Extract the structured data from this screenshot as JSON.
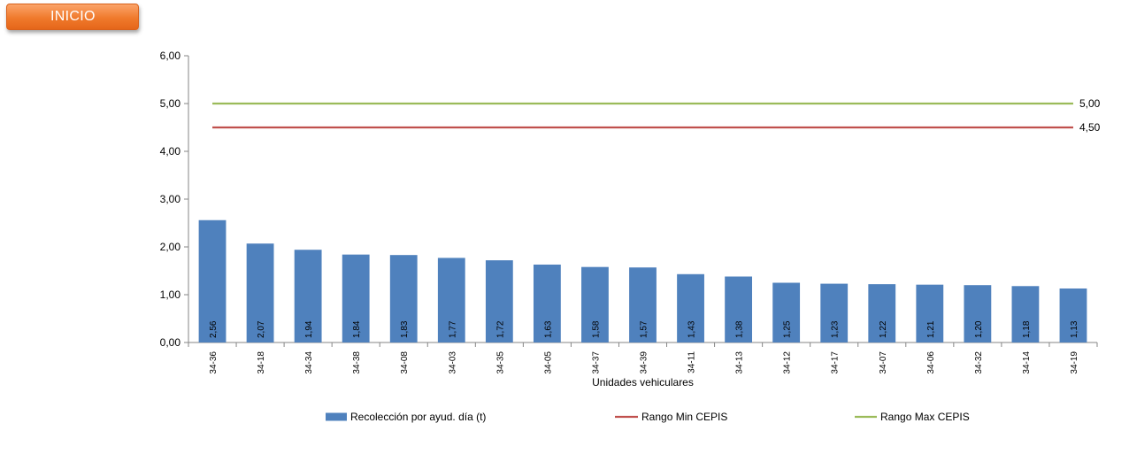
{
  "button": {
    "label": "INICIO"
  },
  "colors": {
    "bar": "#4f81bd",
    "min": "#c0504d",
    "max": "#9bbb59",
    "button": "#f07a2c"
  },
  "chart_data": {
    "type": "bar",
    "title": "",
    "xlabel": "Unidades vehiculares",
    "ylabel": "",
    "ylim": [
      0,
      6
    ],
    "yticks": [
      0,
      1,
      2,
      3,
      4,
      5,
      6
    ],
    "ytick_labels": [
      "0,00",
      "1,00",
      "2,00",
      "3,00",
      "4,00",
      "5,00",
      "6,00"
    ],
    "grid": false,
    "legend_position": "bottom",
    "categories": [
      "34-36",
      "34-18",
      "34-34",
      "34-38",
      "34-08",
      "34-03",
      "34-35",
      "34-05",
      "34-37",
      "34-39",
      "34-11",
      "34-13",
      "34-12",
      "34-17",
      "34-07",
      "34-06",
      "34-32",
      "34-14",
      "34-19"
    ],
    "series": [
      {
        "name": "Recolección por ayud. día (t)",
        "type": "bar",
        "values": [
          2.56,
          2.07,
          1.94,
          1.84,
          1.83,
          1.77,
          1.72,
          1.63,
          1.58,
          1.57,
          1.43,
          1.38,
          1.25,
          1.23,
          1.22,
          1.21,
          1.2,
          1.18,
          1.13
        ],
        "labels": [
          "2,56",
          "2,07",
          "1,94",
          "1,84",
          "1,83",
          "1,77",
          "1,72",
          "1,63",
          "1,58",
          "1,57",
          "1,43",
          "1,38",
          "1,25",
          "1,23",
          "1,22",
          "1,21",
          "1,20",
          "1,18",
          "1,13"
        ]
      },
      {
        "name": "Rango Min CEPIS",
        "type": "line",
        "value": 4.5,
        "label": "4,50"
      },
      {
        "name": "Rango Max CEPIS",
        "type": "line",
        "value": 5.0,
        "label": "5,00"
      }
    ]
  }
}
